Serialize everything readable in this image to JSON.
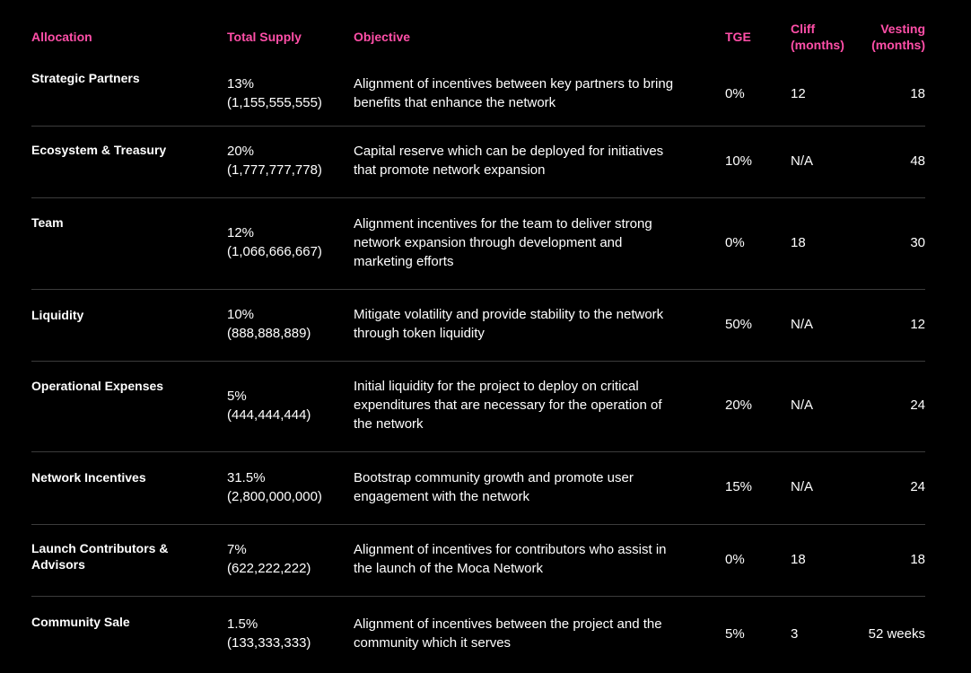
{
  "headers": {
    "allocation": "Allocation",
    "total_supply": "Total Supply",
    "objective": "Objective",
    "tge": "TGE",
    "cliff_1": "Cliff",
    "cliff_2": "(months)",
    "vesting_1": "Vesting",
    "vesting_2": "(months)"
  },
  "accent_color": "#ff4fa8",
  "rows": [
    {
      "name": [
        "Strategic Partners"
      ],
      "supply": [
        "13%",
        "(1,155,555,555)"
      ],
      "objective": [
        "Alignment of incentives between key partners to bring",
        "benefits that enhance the network"
      ],
      "tge": "0%",
      "cliff": "12",
      "vesting": "18"
    },
    {
      "name": [
        "Ecosystem & Treasury"
      ],
      "supply": [
        "20%",
        "(1,777,777,778)"
      ],
      "objective": [
        "Capital reserve which can be deployed for initiatives",
        "that promote network expansion"
      ],
      "tge": "10%",
      "cliff": "N/A",
      "vesting": "48"
    },
    {
      "name": [
        "Team"
      ],
      "supply": [
        "12%",
        "(1,066,666,667)"
      ],
      "objective": [
        "Alignment incentives for the team to deliver strong",
        "network expansion through development and",
        "marketing efforts"
      ],
      "tge": "0%",
      "cliff": "18",
      "vesting": "30"
    },
    {
      "name": [
        "Liquidity"
      ],
      "supply": [
        "10%",
        "(888,888,889)"
      ],
      "objective": [
        "Mitigate volatility and provide stability to the network",
        "through token liquidity"
      ],
      "tge": "50%",
      "cliff": "N/A",
      "vesting": "12"
    },
    {
      "name": [
        "Operational Expenses"
      ],
      "supply": [
        "5%",
        "(444,444,444)"
      ],
      "objective": [
        "Initial liquidity for the project to deploy on critical",
        "expenditures that are necessary for the operation of",
        "the network"
      ],
      "tge": "20%",
      "cliff": "N/A",
      "vesting": "24"
    },
    {
      "name": [
        "Network Incentives"
      ],
      "supply": [
        "31.5%",
        "(2,800,000,000)"
      ],
      "objective": [
        "Bootstrap community growth and promote user",
        "engagement with the network"
      ],
      "tge": "15%",
      "cliff": "N/A",
      "vesting": "24"
    },
    {
      "name": [
        "Launch Contributors &",
        "Advisors"
      ],
      "supply": [
        "7%",
        "(622,222,222)"
      ],
      "objective": [
        "Alignment of incentives for contributors who assist in",
        "the launch of the Moca Network"
      ],
      "tge": "0%",
      "cliff": "18",
      "vesting": "18"
    },
    {
      "name": [
        "Community Sale"
      ],
      "supply": [
        "1.5%",
        "(133,333,333)"
      ],
      "objective": [
        "Alignment of incentives between the project and the",
        "community which it serves"
      ],
      "tge": "5%",
      "cliff": "3",
      "vesting": "52 weeks"
    }
  ]
}
